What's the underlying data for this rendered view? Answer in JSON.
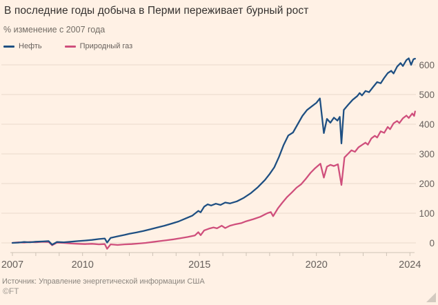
{
  "header": {
    "title": "В последние годы добыча в Перми переживает бурный рост",
    "subtitle": "% изменение с 2007 года"
  },
  "footer": {
    "source": "Источник: Управление энергетической информации США",
    "credit": "©FT"
  },
  "colors": {
    "background": "#fff1e5",
    "oil_line": "#1e4f82",
    "gas_line": "#cf4f7c",
    "gridline": "#e8d9ca",
    "axis": "#cdc2b5",
    "title_text": "#33302e",
    "muted_text": "#66605c"
  },
  "chart_data": {
    "type": "line",
    "title": "В последние годы добыча в Перми переживает бурный рост",
    "subtitle": "% изменение с 2007 года",
    "xlabel": "",
    "ylabel": "% изменение с 2007 года",
    "grid": "horizontal",
    "legend_position": "top-left",
    "x_axis": {
      "range": [
        2007,
        2024.4
      ],
      "labels": [
        2007,
        2010,
        2015,
        2020,
        2024
      ],
      "tick_every_years": 1
    },
    "y_axis": {
      "range": [
        -25,
        650
      ],
      "ticks": [
        0,
        100,
        200,
        300,
        400,
        500,
        600
      ],
      "side": "right"
    },
    "series": [
      {
        "id": "gas",
        "name": "Природный газ",
        "color": "#cf4f7c",
        "points": [
          [
            2007.0,
            0
          ],
          [
            2007.25,
            2
          ],
          [
            2007.5,
            1
          ],
          [
            2007.75,
            3
          ],
          [
            2008.0,
            2
          ],
          [
            2008.3,
            4
          ],
          [
            2008.55,
            3
          ],
          [
            2008.7,
            -8
          ],
          [
            2008.9,
            1
          ],
          [
            2009.2,
            0
          ],
          [
            2009.5,
            -2
          ],
          [
            2009.8,
            -3
          ],
          [
            2010.1,
            -4
          ],
          [
            2010.4,
            -3
          ],
          [
            2010.7,
            -5
          ],
          [
            2010.95,
            -4
          ],
          [
            2011.05,
            -20
          ],
          [
            2011.2,
            -5
          ],
          [
            2011.5,
            -7
          ],
          [
            2011.8,
            -5
          ],
          [
            2012.1,
            -4
          ],
          [
            2012.4,
            -2
          ],
          [
            2012.7,
            0
          ],
          [
            2013.0,
            3
          ],
          [
            2013.3,
            6
          ],
          [
            2013.6,
            9
          ],
          [
            2013.9,
            12
          ],
          [
            2014.2,
            16
          ],
          [
            2014.5,
            20
          ],
          [
            2014.8,
            25
          ],
          [
            2014.95,
            36
          ],
          [
            2015.05,
            26
          ],
          [
            2015.2,
            42
          ],
          [
            2015.4,
            48
          ],
          [
            2015.6,
            52
          ],
          [
            2015.75,
            49
          ],
          [
            2015.95,
            58
          ],
          [
            2016.1,
            50
          ],
          [
            2016.3,
            58
          ],
          [
            2016.5,
            62
          ],
          [
            2016.8,
            67
          ],
          [
            2017.0,
            73
          ],
          [
            2017.3,
            80
          ],
          [
            2017.6,
            88
          ],
          [
            2017.9,
            100
          ],
          [
            2018.05,
            104
          ],
          [
            2018.15,
            90
          ],
          [
            2018.35,
            116
          ],
          [
            2018.55,
            136
          ],
          [
            2018.75,
            155
          ],
          [
            2018.95,
            170
          ],
          [
            2019.15,
            186
          ],
          [
            2019.35,
            198
          ],
          [
            2019.55,
            216
          ],
          [
            2019.75,
            236
          ],
          [
            2019.95,
            252
          ],
          [
            2020.1,
            262
          ],
          [
            2020.17,
            267
          ],
          [
            2020.32,
            220
          ],
          [
            2020.45,
            257
          ],
          [
            2020.6,
            263
          ],
          [
            2020.75,
            259
          ],
          [
            2020.92,
            265
          ],
          [
            2021.07,
            195
          ],
          [
            2021.2,
            288
          ],
          [
            2021.35,
            300
          ],
          [
            2021.5,
            312
          ],
          [
            2021.65,
            307
          ],
          [
            2021.8,
            322
          ],
          [
            2021.95,
            330
          ],
          [
            2022.1,
            338
          ],
          [
            2022.2,
            331
          ],
          [
            2022.35,
            352
          ],
          [
            2022.5,
            361
          ],
          [
            2022.6,
            355
          ],
          [
            2022.75,
            376
          ],
          [
            2022.9,
            371
          ],
          [
            2023.05,
            391
          ],
          [
            2023.15,
            383
          ],
          [
            2023.3,
            403
          ],
          [
            2023.45,
            411
          ],
          [
            2023.55,
            404
          ],
          [
            2023.7,
            420
          ],
          [
            2023.85,
            429
          ],
          [
            2023.95,
            421
          ],
          [
            2024.1,
            436
          ],
          [
            2024.18,
            428
          ],
          [
            2024.22,
            443
          ]
        ]
      },
      {
        "id": "oil",
        "name": "Нефть",
        "color": "#1e4f82",
        "points": [
          [
            2007.0,
            0
          ],
          [
            2007.25,
            1
          ],
          [
            2007.5,
            3
          ],
          [
            2007.75,
            2
          ],
          [
            2008.0,
            4
          ],
          [
            2008.3,
            5
          ],
          [
            2008.55,
            6
          ],
          [
            2008.7,
            -6
          ],
          [
            2008.9,
            3
          ],
          [
            2009.2,
            2
          ],
          [
            2009.5,
            4
          ],
          [
            2009.8,
            6
          ],
          [
            2010.1,
            8
          ],
          [
            2010.4,
            10
          ],
          [
            2010.7,
            13
          ],
          [
            2010.95,
            15
          ],
          [
            2011.05,
            1
          ],
          [
            2011.2,
            17
          ],
          [
            2011.5,
            22
          ],
          [
            2011.8,
            27
          ],
          [
            2012.0,
            31
          ],
          [
            2012.3,
            35
          ],
          [
            2012.6,
            40
          ],
          [
            2012.9,
            46
          ],
          [
            2013.2,
            52
          ],
          [
            2013.5,
            58
          ],
          [
            2013.8,
            65
          ],
          [
            2014.1,
            72
          ],
          [
            2014.4,
            82
          ],
          [
            2014.7,
            92
          ],
          [
            2014.95,
            108
          ],
          [
            2015.05,
            103
          ],
          [
            2015.2,
            122
          ],
          [
            2015.35,
            130
          ],
          [
            2015.5,
            126
          ],
          [
            2015.7,
            132
          ],
          [
            2015.9,
            128
          ],
          [
            2016.1,
            136
          ],
          [
            2016.3,
            133
          ],
          [
            2016.6,
            140
          ],
          [
            2016.9,
            152
          ],
          [
            2017.2,
            168
          ],
          [
            2017.5,
            188
          ],
          [
            2017.8,
            212
          ],
          [
            2018.0,
            232
          ],
          [
            2018.2,
            255
          ],
          [
            2018.4,
            290
          ],
          [
            2018.6,
            330
          ],
          [
            2018.8,
            362
          ],
          [
            2019.0,
            372
          ],
          [
            2019.2,
            400
          ],
          [
            2019.4,
            428
          ],
          [
            2019.6,
            448
          ],
          [
            2019.8,
            460
          ],
          [
            2020.0,
            472
          ],
          [
            2020.15,
            487
          ],
          [
            2020.32,
            370
          ],
          [
            2020.45,
            418
          ],
          [
            2020.6,
            405
          ],
          [
            2020.75,
            422
          ],
          [
            2020.9,
            412
          ],
          [
            2021.0,
            425
          ],
          [
            2021.07,
            335
          ],
          [
            2021.17,
            448
          ],
          [
            2021.35,
            465
          ],
          [
            2021.55,
            482
          ],
          [
            2021.75,
            495
          ],
          [
            2021.85,
            505
          ],
          [
            2021.95,
            497
          ],
          [
            2022.1,
            512
          ],
          [
            2022.25,
            508
          ],
          [
            2022.45,
            528
          ],
          [
            2022.6,
            542
          ],
          [
            2022.75,
            538
          ],
          [
            2022.9,
            556
          ],
          [
            2023.05,
            572
          ],
          [
            2023.2,
            580
          ],
          [
            2023.3,
            571
          ],
          [
            2023.45,
            594
          ],
          [
            2023.6,
            606
          ],
          [
            2023.7,
            596
          ],
          [
            2023.85,
            616
          ],
          [
            2023.95,
            622
          ],
          [
            2024.05,
            600
          ],
          [
            2024.15,
            619
          ],
          [
            2024.22,
            621
          ]
        ]
      }
    ]
  }
}
